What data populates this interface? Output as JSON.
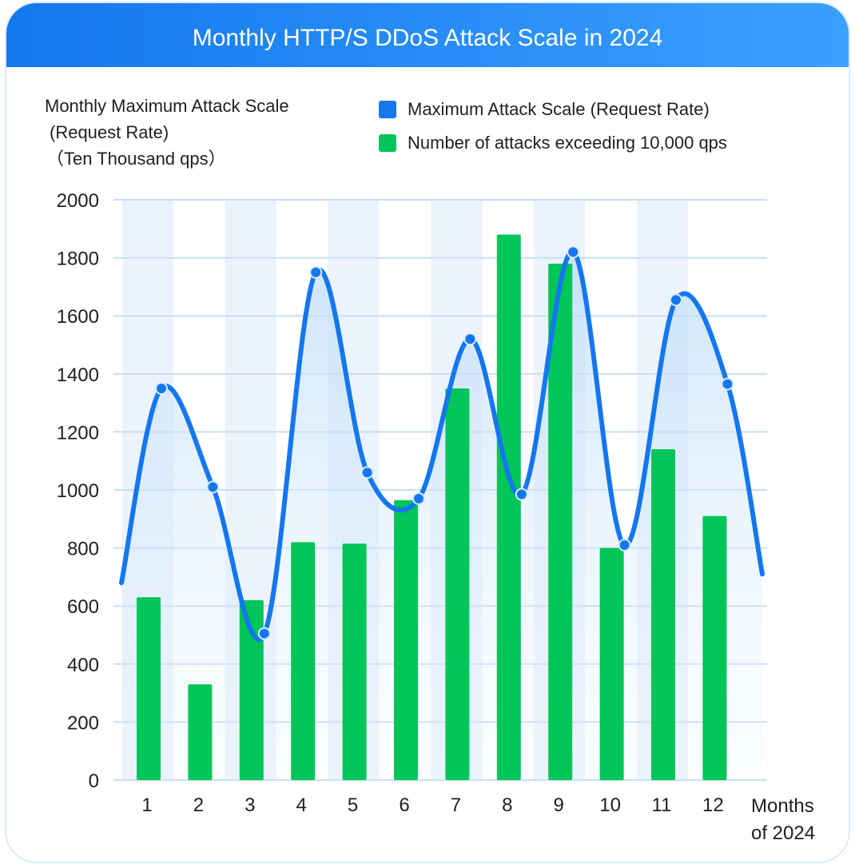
{
  "header": {
    "title": "Monthly HTTP/S DDoS Attack Scale in 2024"
  },
  "y_axis_title": [
    "Monthly Maximum Attack Scale",
    "(Request Rate)",
    "（Ten Thousand qps）"
  ],
  "x_axis_unit": [
    "Months",
    "of 2024"
  ],
  "colors": {
    "line": "#1477f0",
    "bars": "#00c558",
    "band": "#edf3fc",
    "grid": "#c9ddf5",
    "header": "#1a82f5"
  },
  "chart_data": {
    "type": "bar",
    "categories": [
      "1",
      "2",
      "3",
      "4",
      "5",
      "6",
      "7",
      "8",
      "9",
      "10",
      "11",
      "12"
    ],
    "ylim": [
      0,
      2000
    ],
    "yticks": [
      "0",
      "200",
      "400",
      "600",
      "800",
      "1000",
      "1200",
      "1400",
      "1600",
      "1800",
      "2000"
    ],
    "series": [
      {
        "name": "Maximum Attack Scale (Request Rate)",
        "type": "line",
        "values": [
          1350,
          1010,
          505,
          1750,
          1060,
          970,
          1520,
          985,
          1820,
          810,
          1655,
          1365
        ]
      },
      {
        "name": "Number of attacks exceeding 10,000 qps",
        "type": "bar",
        "values": [
          630,
          330,
          620,
          820,
          815,
          965,
          1350,
          1880,
          1780,
          800,
          1140,
          910
        ]
      }
    ],
    "grid": true,
    "legend": "top-right"
  }
}
